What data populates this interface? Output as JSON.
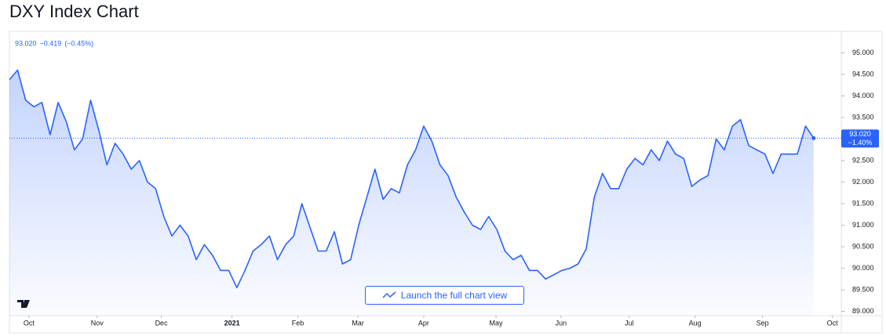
{
  "title": "DXY Index Chart",
  "chart_data": {
    "type": "line",
    "header": {
      "price": "93.020",
      "change": "−0.419",
      "change_pct": "(−0.45%)"
    },
    "last_price_label": "93.020",
    "last_change_label": "−1.40%",
    "button": "Launch the full chart view",
    "color": "#2962ff",
    "grid": false,
    "values": [
      94.38,
      94.6,
      93.9,
      93.75,
      93.85,
      93.1,
      93.85,
      93.4,
      92.75,
      93.0,
      93.9,
      93.2,
      92.4,
      92.9,
      92.65,
      92.3,
      92.5,
      92.0,
      91.85,
      91.2,
      90.75,
      91.0,
      90.75,
      90.2,
      90.55,
      90.3,
      89.95,
      89.95,
      89.55,
      89.95,
      90.4,
      90.55,
      90.75,
      90.2,
      90.55,
      90.75,
      91.5,
      90.95,
      90.4,
      90.4,
      90.85,
      90.1,
      90.2,
      91.0,
      91.65,
      92.3,
      91.6,
      91.85,
      91.75,
      92.4,
      92.75,
      93.3,
      92.95,
      92.4,
      92.15,
      91.65,
      91.3,
      91.0,
      90.9,
      91.2,
      90.9,
      90.4,
      90.2,
      90.3,
      89.95,
      89.95,
      89.75,
      89.85,
      89.95,
      90.0,
      90.1,
      90.45,
      91.65,
      92.2,
      91.85,
      91.85,
      92.3,
      92.55,
      92.4,
      92.75,
      92.5,
      92.95,
      92.65,
      92.55,
      91.9,
      92.05,
      92.15,
      93.0,
      92.75,
      93.3,
      93.45,
      92.85,
      92.75,
      92.65,
      92.2,
      92.65,
      92.65,
      92.65,
      93.3,
      93.02
    ],
    "xlim": [
      0,
      102.4
    ],
    "xticks": [
      {
        "value": 2.4,
        "label": "Oct"
      },
      {
        "value": 10.8,
        "label": "Nov"
      },
      {
        "value": 18.7,
        "label": "Dec"
      },
      {
        "value": 27.4,
        "label": "2021"
      },
      {
        "value": 35.5,
        "label": "Feb"
      },
      {
        "value": 42.9,
        "label": "Mar"
      },
      {
        "value": 51,
        "label": "Apr"
      },
      {
        "value": 59.9,
        "label": "May"
      },
      {
        "value": 67.9,
        "label": "Jun"
      },
      {
        "value": 76.3,
        "label": "Jul"
      },
      {
        "value": 84.4,
        "label": "Aug"
      },
      {
        "value": 92.7,
        "label": "Sep"
      },
      {
        "value": 101.3,
        "label": "Oct"
      }
    ],
    "ylim": [
      88.9,
      95.5
    ],
    "yticks": [
      {
        "value": 89,
        "label": "89.000"
      },
      {
        "value": 89.5,
        "label": "89.500"
      },
      {
        "value": 90,
        "label": "90.000"
      },
      {
        "value": 90.5,
        "label": "90.500"
      },
      {
        "value": 91,
        "label": "91.000"
      },
      {
        "value": 91.5,
        "label": "91.500"
      },
      {
        "value": 92,
        "label": "92.000"
      },
      {
        "value": 92.5,
        "label": "92.500"
      },
      {
        "value": 93,
        "label": "93.000"
      },
      {
        "value": 93.5,
        "label": "93.500"
      },
      {
        "value": 94,
        "label": "94.000"
      },
      {
        "value": 94.5,
        "label": "94.500"
      },
      {
        "value": 95,
        "label": "95.000"
      }
    ]
  }
}
